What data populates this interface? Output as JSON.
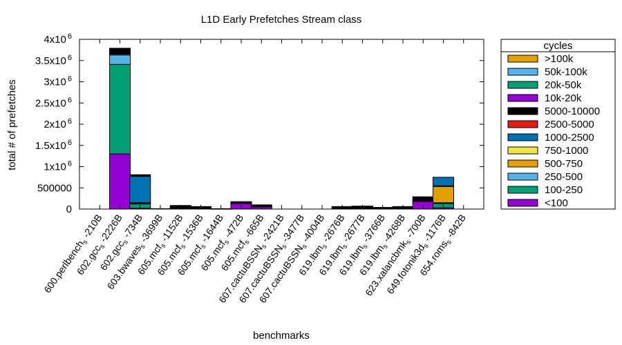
{
  "chart_data": {
    "type": "bar",
    "stacked": true,
    "title": "L1D Early Prefetches Stream class",
    "xlabel": "benchmarks",
    "ylabel": "total # of prefetches",
    "ylim": [
      0,
      4000000
    ],
    "yticks": [
      {
        "value": 0,
        "label": "0",
        "exp": ""
      },
      {
        "value": 500000,
        "label": "500000",
        "exp": ""
      },
      {
        "value": 1000000,
        "label": "1x10",
        "exp": "6"
      },
      {
        "value": 1500000,
        "label": "1.5x10",
        "exp": "6"
      },
      {
        "value": 2000000,
        "label": "2x10",
        "exp": "6"
      },
      {
        "value": 2500000,
        "label": "2.5x10",
        "exp": "6"
      },
      {
        "value": 3000000,
        "label": "3x10",
        "exp": "6"
      },
      {
        "value": 3500000,
        "label": "3.5x10",
        "exp": "6"
      },
      {
        "value": 4000000,
        "label": "4x10",
        "exp": "6"
      }
    ],
    "grid": false,
    "legend_title": "cycles",
    "legend_position": "right",
    "categories": [
      {
        "main": "600.perlbench",
        "sub": "s",
        "suffix": "-210B"
      },
      {
        "main": "602.gcc",
        "sub": "s",
        "suffix": "-2226B"
      },
      {
        "main": "602.gcc",
        "sub": "s",
        "suffix": "-734B"
      },
      {
        "main": "603.bwaves",
        "sub": "s",
        "suffix": "-3699B"
      },
      {
        "main": "605.mcf",
        "sub": "s",
        "suffix": "-1152B"
      },
      {
        "main": "605.mcf",
        "sub": "s",
        "suffix": "-1536B"
      },
      {
        "main": "605.mcf",
        "sub": "s",
        "suffix": "-1644B"
      },
      {
        "main": "605.mcf",
        "sub": "s",
        "suffix": "-472B"
      },
      {
        "main": "605.mcf",
        "sub": "s",
        "suffix": "-665B"
      },
      {
        "main": "607.cactuBSSN",
        "sub": "s",
        "suffix": "-2421B"
      },
      {
        "main": "607.cactuBSSN",
        "sub": "s",
        "suffix": "-3477B"
      },
      {
        "main": "607.cactuBSSN",
        "sub": "s",
        "suffix": "-4004B"
      },
      {
        "main": "619.lbm",
        "sub": "s",
        "suffix": "-2676B"
      },
      {
        "main": "619.lbm",
        "sub": "s",
        "suffix": "-2677B"
      },
      {
        "main": "619.lbm",
        "sub": "s",
        "suffix": "-3766B"
      },
      {
        "main": "619.lbm",
        "sub": "s",
        "suffix": "-4268B"
      },
      {
        "main": "623.xalancbmk",
        "sub": "s",
        "suffix": "-700B"
      },
      {
        "main": "649.fotonik3d",
        "sub": "s",
        "suffix": "-1176B"
      },
      {
        "main": "654.roms",
        "sub": "s",
        "suffix": "-842B"
      }
    ],
    "series": [
      {
        "name": "<100",
        "color": "#9400d3",
        "values": [
          0,
          1300000,
          20000,
          0,
          20000,
          15000,
          5000,
          130000,
          50000,
          0,
          0,
          0,
          15000,
          20000,
          10000,
          10000,
          180000,
          30000,
          0
        ]
      },
      {
        "name": "100-250",
        "color": "#009e73",
        "values": [
          0,
          2110000,
          100000,
          0,
          10000,
          10000,
          0,
          15000,
          10000,
          0,
          0,
          0,
          5000,
          5000,
          5000,
          5000,
          20000,
          100000,
          0
        ]
      },
      {
        "name": "250-500",
        "color": "#56b4e9",
        "values": [
          0,
          220000,
          20000,
          0,
          0,
          0,
          0,
          0,
          0,
          0,
          0,
          0,
          0,
          0,
          0,
          0,
          5000,
          20000,
          0
        ]
      },
      {
        "name": "500-750",
        "color": "#e69f00",
        "values": [
          0,
          0,
          0,
          0,
          0,
          0,
          0,
          0,
          0,
          0,
          0,
          0,
          0,
          0,
          0,
          0,
          0,
          380000,
          0
        ]
      },
      {
        "name": "750-1000",
        "color": "#f0e442",
        "values": [
          0,
          20000,
          10000,
          0,
          0,
          0,
          0,
          0,
          0,
          0,
          0,
          0,
          0,
          0,
          0,
          0,
          0,
          20000,
          0
        ]
      },
      {
        "name": "1000-2500",
        "color": "#0072b2",
        "values": [
          0,
          20000,
          620000,
          0,
          0,
          0,
          0,
          0,
          0,
          0,
          0,
          0,
          0,
          0,
          0,
          0,
          0,
          200000,
          0
        ]
      },
      {
        "name": "2500-5000",
        "color": "#e51e10",
        "values": [
          0,
          0,
          0,
          0,
          0,
          0,
          0,
          0,
          0,
          0,
          0,
          0,
          0,
          0,
          0,
          0,
          0,
          0,
          0
        ]
      },
      {
        "name": "5000-10000",
        "color": "#000000",
        "values": [
          0,
          120000,
          40000,
          10000,
          55000,
          35000,
          5000,
          30000,
          40000,
          0,
          0,
          0,
          40000,
          45000,
          25000,
          45000,
          85000,
          0,
          0
        ]
      },
      {
        "name": "10k-20k",
        "color": "#9400d3",
        "values": [
          0,
          0,
          0,
          0,
          0,
          0,
          0,
          0,
          0,
          0,
          0,
          0,
          0,
          0,
          0,
          0,
          0,
          0,
          0
        ]
      },
      {
        "name": "20k-50k",
        "color": "#009e73",
        "values": [
          0,
          0,
          0,
          0,
          0,
          0,
          0,
          0,
          0,
          0,
          0,
          0,
          0,
          0,
          0,
          0,
          0,
          0,
          0
        ]
      },
      {
        "name": "50k-100k",
        "color": "#56b4e9",
        "values": [
          0,
          0,
          0,
          0,
          0,
          0,
          0,
          0,
          0,
          0,
          0,
          0,
          0,
          0,
          0,
          0,
          0,
          0,
          0
        ]
      },
      {
        "name": ">100k",
        "color": "#e69f00",
        "values": [
          0,
          0,
          0,
          0,
          0,
          0,
          0,
          0,
          0,
          0,
          0,
          0,
          0,
          0,
          0,
          0,
          0,
          0,
          0
        ]
      }
    ]
  }
}
